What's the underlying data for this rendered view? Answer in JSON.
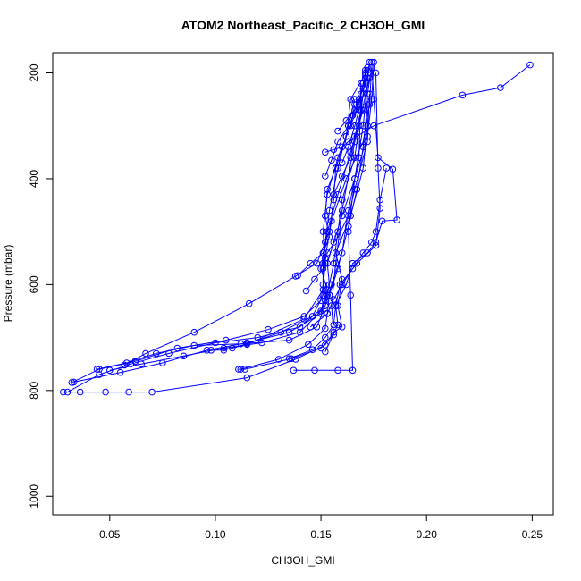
{
  "chart_data": {
    "type": "line",
    "title": "ATOM2 Northeast_Pacific_2 CH3OH_GMI",
    "xlabel": "CH3OH_GMI",
    "ylabel": "Pressure (mbar)",
    "xlim": [
      0.023,
      0.26
    ],
    "ylim": [
      1035,
      162
    ],
    "y_reversed": true,
    "x_ticks": [
      0.05,
      0.1,
      0.15,
      0.2,
      0.25
    ],
    "x_tick_labels": [
      "0.05",
      "0.10",
      "0.15",
      "0.20",
      "0.25"
    ],
    "y_ticks": [
      200,
      400,
      600,
      800,
      1000
    ],
    "y_tick_labels": [
      "200",
      "400",
      "600",
      "800",
      "1000"
    ],
    "grid": false,
    "legend": "none",
    "marker": "open-circle",
    "color": "#0000ff",
    "series": [
      {
        "x": [
          0.028,
          0.036,
          0.048,
          0.059,
          0.07,
          0.115,
          0.138,
          0.152,
          0.156,
          0.16,
          0.158,
          0.16,
          0.157,
          0.164,
          0.17,
          0.172,
          0.172,
          0.174
        ],
        "y": [
          803,
          803,
          803,
          803,
          803,
          776,
          741,
          714,
          690,
          680,
          640,
          590,
          540,
          470,
          380,
          300,
          240,
          190
        ]
      },
      {
        "x": [
          0.03,
          0.045,
          0.06,
          0.078,
          0.1,
          0.12,
          0.14,
          0.152,
          0.153,
          0.154,
          0.156,
          0.158,
          0.16,
          0.166,
          0.168,
          0.17,
          0.171
        ],
        "y": [
          803,
          770,
          750,
          730,
          710,
          700,
          680,
          640,
          620,
          600,
          560,
          500,
          440,
          360,
          300,
          240,
          195
        ]
      },
      {
        "x": [
          0.033,
          0.055,
          0.075,
          0.096,
          0.115,
          0.135,
          0.15,
          0.152,
          0.154,
          0.153,
          0.156,
          0.16,
          0.166,
          0.172,
          0.174,
          0.175
        ],
        "y": [
          784,
          766,
          748,
          724,
          710,
          690,
          655,
          630,
          600,
          560,
          520,
          470,
          400,
          320,
          250,
          180
        ]
      },
      {
        "x": [
          0.032,
          0.045,
          0.062,
          0.082,
          0.105,
          0.125,
          0.142,
          0.15,
          0.151,
          0.152,
          0.155,
          0.162,
          0.17,
          0.173,
          0.174
        ],
        "y": [
          785,
          760,
          745,
          720,
          705,
          685,
          660,
          630,
          600,
          550,
          480,
          400,
          330,
          260,
          190
        ]
      },
      {
        "x": [
          0.044,
          0.058,
          0.072,
          0.09,
          0.112,
          0.135,
          0.148,
          0.152,
          0.155,
          0.16,
          0.163,
          0.168,
          0.169
        ],
        "y": [
          760,
          748,
          730,
          715,
          712,
          705,
          680,
          640,
          600,
          540,
          460,
          360,
          220
        ]
      },
      {
        "x": [
          0.05,
          0.065,
          0.085,
          0.104,
          0.122,
          0.14,
          0.15,
          0.153,
          0.15,
          0.152,
          0.154,
          0.158,
          0.163,
          0.166
        ],
        "y": [
          762,
          750,
          735,
          720,
          710,
          690,
          650,
          610,
          570,
          520,
          460,
          380,
          300,
          250
        ]
      },
      {
        "x": [
          0.057,
          0.067,
          0.09,
          0.116,
          0.138,
          0.148,
          0.154,
          0.156,
          0.157,
          0.162,
          0.164,
          0.172
        ],
        "y": [
          752,
          730,
          690,
          636,
          584,
          560,
          500,
          440,
          380,
          320,
          250,
          195
        ]
      },
      {
        "x": [
          0.108,
          0.115,
          0.142,
          0.151,
          0.152,
          0.151,
          0.153,
          0.158,
          0.164,
          0.166
        ],
        "y": [
          720,
          713,
          665,
          610,
          560,
          500,
          430,
          360,
          300,
          260
        ]
      },
      {
        "x": [
          0.098,
          0.104,
          0.115,
          0.131,
          0.146,
          0.151,
          0.151,
          0.153,
          0.158,
          0.164,
          0.17
        ],
        "y": [
          724,
          724,
          712,
          690,
          660,
          620,
          560,
          500,
          430,
          350,
          270
        ]
      },
      {
        "x": [
          0.111,
          0.114,
          0.136,
          0.15,
          0.156,
          0.155,
          0.157,
          0.16,
          0.166,
          0.173
        ],
        "y": [
          760,
          760,
          740,
          720,
          695,
          640,
          560,
          460,
          330,
          210
        ]
      },
      {
        "x": [
          0.137,
          0.147,
          0.158,
          0.165,
          0.164,
          0.163,
          0.166,
          0.17,
          0.173
        ],
        "y": [
          762,
          762,
          762,
          762,
          620,
          500,
          400,
          300,
          180
        ]
      },
      {
        "x": [
          0.152,
          0.158,
          0.157,
          0.162,
          0.165,
          0.172,
          0.176,
          0.179,
          0.186,
          0.184,
          0.177,
          0.175,
          0.174
        ],
        "y": [
          727,
          676,
          640,
          600,
          560,
          540,
          520,
          480,
          478,
          382,
          360,
          250,
          180
        ]
      },
      {
        "x": [
          0.135,
          0.146,
          0.152,
          0.156,
          0.157,
          0.159,
          0.167,
          0.176,
          0.178,
          0.177,
          0.176
        ],
        "y": [
          740,
          723,
          700,
          676,
          640,
          600,
          560,
          526,
          456,
          380,
          200
        ]
      },
      {
        "x": [
          0.112,
          0.13,
          0.144,
          0.152,
          0.153,
          0.154,
          0.158,
          0.163,
          0.167,
          0.17,
          0.172
        ],
        "y": [
          760,
          741,
          713,
          683,
          654,
          620,
          570,
          490,
          420,
          340,
          260
        ]
      },
      {
        "x": [
          0.145,
          0.153,
          0.156,
          0.16,
          0.165,
          0.17,
          0.174,
          0.176,
          0.178,
          0.181
        ],
        "y": [
          680,
          655,
          628,
          600,
          570,
          540,
          520,
          500,
          440,
          380
        ]
      },
      {
        "x": [
          0.143,
          0.147,
          0.151,
          0.153,
          0.158,
          0.163,
          0.166,
          0.172,
          0.173
        ],
        "y": [
          612,
          590,
          570,
          540,
          510,
          470,
          420,
          330,
          240
        ]
      },
      {
        "x": [
          0.139,
          0.145,
          0.151,
          0.154,
          0.152,
          0.153,
          0.157,
          0.162,
          0.168,
          0.171
        ],
        "y": [
          583,
          560,
          540,
          510,
          470,
          420,
          380,
          320,
          260,
          200
        ]
      },
      {
        "x": [
          0.158,
          0.162,
          0.166,
          0.168,
          0.169,
          0.17,
          0.171,
          0.172
        ],
        "y": [
          310,
          290,
          270,
          255,
          240,
          220,
          205,
          190
        ]
      },
      {
        "x": [
          0.152,
          0.156,
          0.16,
          0.163,
          0.167,
          0.175,
          0.217,
          0.235,
          0.249
        ],
        "y": [
          350,
          345,
          340,
          330,
          320,
          300,
          242,
          228,
          185
        ]
      },
      {
        "x": [
          0.16,
          0.163,
          0.166,
          0.168,
          0.17,
          0.171
        ],
        "y": [
          370,
          340,
          300,
          270,
          240,
          210
        ]
      },
      {
        "x": [
          0.152,
          0.155,
          0.158,
          0.163,
          0.168,
          0.17
        ],
        "y": [
          395,
          365,
          330,
          300,
          260,
          220
        ]
      },
      {
        "x": [
          0.156,
          0.16,
          0.164,
          0.166,
          0.169
        ],
        "y": [
          430,
          395,
          360,
          320,
          270
        ]
      },
      {
        "x": [
          0.165,
          0.168,
          0.17,
          0.172
        ],
        "y": [
          280,
          250,
          230,
          210
        ]
      }
    ]
  }
}
